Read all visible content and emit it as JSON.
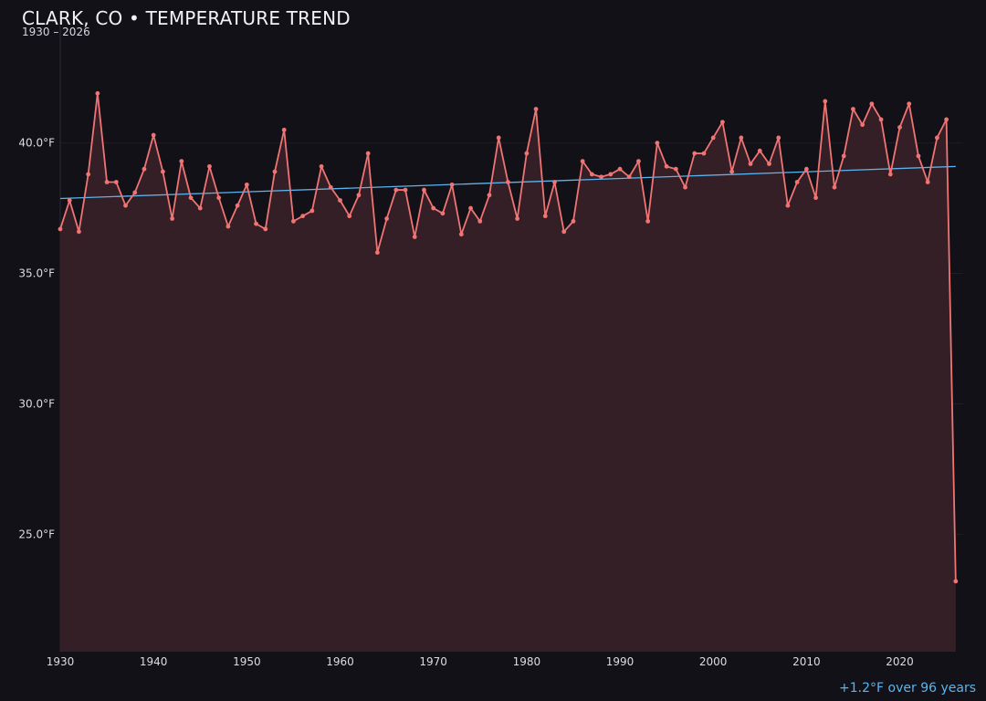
{
  "chart_data": {
    "type": "line",
    "title": "CLARK, CO • TEMPERATURE TREND",
    "subtitle": "1930 – 2026",
    "annotation": "+1.2°F over 96 years",
    "xlim": [
      1930,
      2026.8
    ],
    "ylim": [
      20.5,
      44.5
    ],
    "x_ticks": [
      1930,
      1940,
      1950,
      1960,
      1970,
      1980,
      1990,
      2000,
      2010,
      2020
    ],
    "y_ticks": [
      25.0,
      30.0,
      35.0,
      40.0
    ],
    "y_tick_labels": [
      "25.0°F",
      "30.0°F",
      "35.0°F",
      "40.0°F"
    ],
    "grid": true,
    "colors": {
      "background": "#121117",
      "series": "#f07474",
      "fill": "#331f25",
      "trend": "#5ab4f0",
      "grid": "#221d24",
      "axis": "#2a2a33"
    },
    "series": [
      {
        "x": [
          1930,
          1931,
          1932,
          1933,
          1934,
          1935,
          1936,
          1937,
          1938,
          1939,
          1940,
          1941,
          1942,
          1943,
          1944,
          1945,
          1946,
          1947,
          1948,
          1949,
          1950,
          1951,
          1952,
          1953,
          1954,
          1955,
          1956,
          1957,
          1958,
          1959,
          1960,
          1961,
          1962,
          1963,
          1964,
          1965,
          1966,
          1967,
          1968,
          1969,
          1970,
          1971,
          1972,
          1973,
          1974,
          1975,
          1976,
          1977,
          1978,
          1979,
          1980,
          1981,
          1982,
          1983,
          1984,
          1985,
          1986,
          1987,
          1988,
          1989,
          1990,
          1991,
          1992,
          1993,
          1994,
          1995,
          1996,
          1997,
          1998,
          1999,
          2000,
          2001,
          2002,
          2003,
          2004,
          2005,
          2006,
          2007,
          2008,
          2009,
          2010,
          2011,
          2012,
          2013,
          2014,
          2015,
          2016,
          2017,
          2018,
          2019,
          2020,
          2021,
          2022,
          2023,
          2024,
          2025,
          2026
        ],
        "values": [
          36.7,
          37.8,
          36.6,
          38.8,
          41.9,
          38.5,
          38.5,
          37.6,
          38.1,
          39.0,
          40.3,
          38.9,
          37.1,
          39.3,
          37.9,
          37.5,
          39.1,
          37.9,
          36.8,
          37.6,
          38.4,
          36.9,
          36.7,
          38.9,
          40.5,
          37.0,
          37.2,
          37.4,
          39.1,
          38.3,
          37.8,
          37.2,
          38.0,
          39.6,
          35.8,
          37.1,
          38.2,
          38.2,
          36.4,
          38.2,
          37.5,
          37.3,
          38.4,
          36.5,
          37.5,
          37.0,
          38.0,
          40.2,
          38.5,
          37.1,
          39.6,
          41.3,
          37.2,
          38.5,
          36.6,
          37.0,
          39.3,
          38.8,
          38.7,
          38.8,
          39.0,
          38.7,
          39.3,
          37.0,
          40.0,
          39.1,
          39.0,
          38.3,
          39.6,
          39.6,
          40.2,
          40.8,
          38.9,
          40.2,
          39.2,
          39.7,
          39.2,
          40.2,
          37.6,
          38.5,
          39.0,
          37.9,
          41.6,
          38.3,
          39.5,
          41.3,
          40.7,
          41.5,
          40.9,
          38.8,
          40.6,
          41.5,
          39.5,
          38.5,
          40.2,
          40.9,
          23.2
        ]
      }
    ],
    "trend": {
      "x": [
        1930,
        2026
      ],
      "values": [
        37.87,
        39.1
      ]
    }
  }
}
